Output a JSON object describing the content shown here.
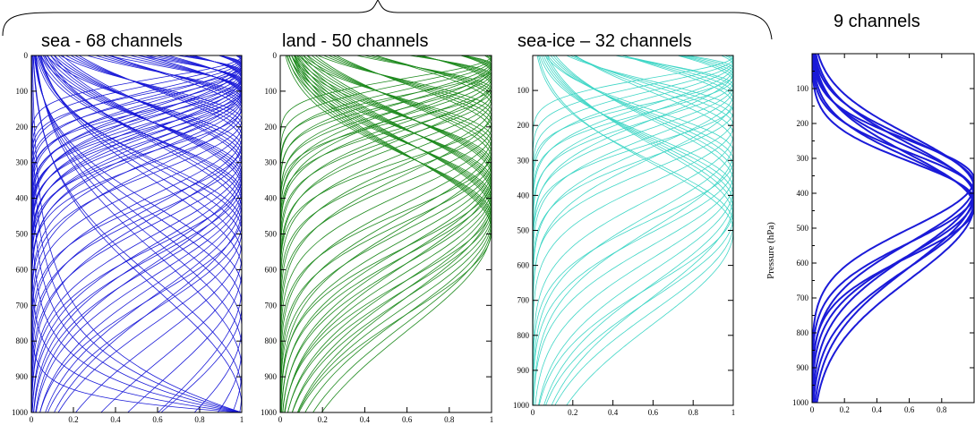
{
  "panels": [
    {
      "title": "sea - 68 channels"
    },
    {
      "title": "land - 50 channels"
    },
    {
      "title": "sea-ice – 32 channels"
    },
    {
      "title": "9 channels"
    }
  ],
  "chart_data": [
    {
      "type": "line",
      "title": "sea - 68 channels",
      "color": "#1a1ad8",
      "n_curves": 68,
      "xlim": [
        0,
        1
      ],
      "ylim": [
        1000,
        0
      ],
      "xticks": [
        "0",
        "0.2",
        "0.4",
        "0.6",
        "0.8",
        "1"
      ],
      "yticks": [
        "0",
        "100",
        "200",
        "300",
        "400",
        "500",
        "600",
        "700",
        "800",
        "900",
        "1000"
      ],
      "xlabel": "",
      "ylabel": "",
      "peak_pressures_hPa": [
        2,
        6,
        10,
        14,
        18,
        22,
        26,
        30,
        35,
        40,
        45,
        50,
        55,
        60,
        65,
        70,
        75,
        80,
        85,
        90,
        95,
        100,
        105,
        110,
        115,
        120,
        130,
        140,
        150,
        165,
        180,
        195,
        210,
        225,
        240,
        255,
        270,
        285,
        300,
        312,
        324,
        336,
        348,
        360,
        372,
        384,
        396,
        410,
        430,
        450,
        470,
        490,
        520,
        560,
        600,
        650,
        700,
        760,
        820,
        880,
        940,
        985,
        1000,
        1000,
        1000,
        1000,
        1000,
        1000
      ]
    },
    {
      "type": "line",
      "title": "land - 50 channels",
      "color": "#1e8a1e",
      "n_curves": 50,
      "xlim": [
        0,
        1
      ],
      "ylim": [
        1000,
        0
      ],
      "xticks": [
        "0",
        "0.2",
        "0.4",
        "0.6",
        "0.8",
        "1"
      ],
      "yticks": [
        "0",
        "100",
        "200",
        "300",
        "400",
        "500",
        "600",
        "700",
        "800",
        "900",
        "1000"
      ],
      "xlabel": "",
      "ylabel": "",
      "peak_pressures_hPa": [
        2,
        6,
        10,
        15,
        20,
        25,
        30,
        36,
        42,
        48,
        55,
        62,
        70,
        78,
        86,
        95,
        105,
        115,
        125,
        140,
        155,
        170,
        185,
        200,
        215,
        230,
        245,
        260,
        275,
        290,
        300,
        310,
        320,
        330,
        340,
        350,
        360,
        370,
        380,
        390,
        400,
        410,
        420,
        430,
        440,
        450,
        460,
        470,
        480,
        490
      ]
    },
    {
      "type": "line",
      "title": "sea-ice – 32 channels",
      "color": "#3fd6c6",
      "n_curves": 32,
      "xlim": [
        0,
        1
      ],
      "ylim": [
        1000,
        0
      ],
      "xticks": [
        "0",
        "0.2",
        "0.4",
        "0.6",
        "0.8",
        "1"
      ],
      "yticks": [
        "100",
        "200",
        "300",
        "400",
        "500",
        "600",
        "700",
        "800",
        "900",
        "1000"
      ],
      "xlabel": "",
      "ylabel": "",
      "peak_pressures_hPa": [
        2,
        8,
        14,
        20,
        28,
        36,
        45,
        55,
        65,
        75,
        85,
        95,
        110,
        125,
        140,
        160,
        180,
        200,
        225,
        250,
        275,
        300,
        320,
        340,
        360,
        380,
        400,
        420,
        440,
        460,
        480,
        500
      ]
    },
    {
      "type": "line",
      "title": "9 channels",
      "color": "#1a1ad8",
      "n_curves": 9,
      "xlim": [
        0,
        1
      ],
      "ylim": [
        1000,
        0
      ],
      "xticks": [
        "0",
        "0.2",
        "0.4",
        "0.6",
        "0.8"
      ],
      "yticks": [
        "100",
        "200",
        "300",
        "400",
        "500",
        "600",
        "700",
        "800",
        "900",
        "1000"
      ],
      "xlabel": "",
      "ylabel": "Pressure (hPa)",
      "peak_pressures_hPa": [
        360,
        375,
        385,
        395,
        400,
        410,
        420,
        430,
        440
      ]
    }
  ]
}
